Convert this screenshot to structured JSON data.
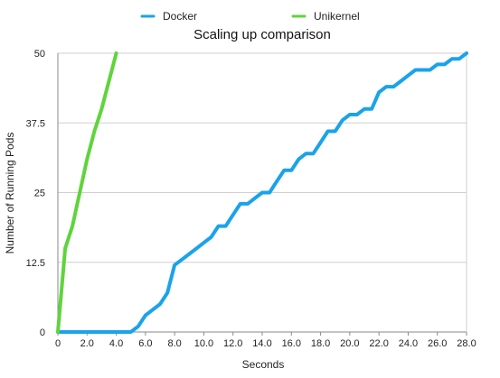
{
  "chart_data": {
    "type": "line",
    "title": "Scaling up comparison",
    "xlabel": "Seconds",
    "ylabel": "Number of Running Pods",
    "xlim": [
      0,
      28
    ],
    "ylim": [
      0,
      50
    ],
    "x_ticks": [
      0,
      2,
      4,
      6,
      8,
      10,
      12,
      14,
      16,
      18,
      20,
      22,
      24,
      26,
      28
    ],
    "x_tick_labels": [
      "0",
      "2.0",
      "4.0",
      "6.0",
      "8.0",
      "10.0",
      "12.0",
      "14.0",
      "16.0",
      "18.0",
      "20.0",
      "22.0",
      "24.0",
      "26.0",
      "28.0"
    ],
    "y_ticks": [
      0,
      12.5,
      25,
      37.5,
      50
    ],
    "y_tick_labels": [
      "0",
      "12.5",
      "25",
      "37.5",
      "50"
    ],
    "grid": true,
    "legend_position": "top-center",
    "series": [
      {
        "name": "Docker",
        "color": "#1aa3ea",
        "points": [
          [
            0,
            0
          ],
          [
            5.0,
            0
          ],
          [
            5.5,
            1
          ],
          [
            6.0,
            3
          ],
          [
            6.5,
            4
          ],
          [
            7.0,
            5
          ],
          [
            7.5,
            7
          ],
          [
            8.0,
            12
          ],
          [
            8.5,
            13
          ],
          [
            9.0,
            14
          ],
          [
            9.5,
            15
          ],
          [
            10.0,
            16
          ],
          [
            10.5,
            17
          ],
          [
            11.0,
            19
          ],
          [
            11.5,
            19
          ],
          [
            12.0,
            21
          ],
          [
            12.5,
            23
          ],
          [
            13.0,
            23
          ],
          [
            13.5,
            24
          ],
          [
            14.0,
            25
          ],
          [
            14.5,
            25
          ],
          [
            15.0,
            27
          ],
          [
            15.5,
            29
          ],
          [
            16.0,
            29
          ],
          [
            16.5,
            31
          ],
          [
            17.0,
            32
          ],
          [
            17.5,
            32
          ],
          [
            18.0,
            34
          ],
          [
            18.5,
            36
          ],
          [
            19.0,
            36
          ],
          [
            19.5,
            38
          ],
          [
            20.0,
            39
          ],
          [
            20.5,
            39
          ],
          [
            21.0,
            40
          ],
          [
            21.5,
            40
          ],
          [
            22.0,
            43
          ],
          [
            22.5,
            44
          ],
          [
            23.0,
            44
          ],
          [
            23.5,
            45
          ],
          [
            24.0,
            46
          ],
          [
            24.5,
            47
          ],
          [
            25.0,
            47
          ],
          [
            25.5,
            47
          ],
          [
            26.0,
            48
          ],
          [
            26.5,
            48
          ],
          [
            27.0,
            49
          ],
          [
            27.5,
            49
          ],
          [
            28.0,
            50
          ]
        ]
      },
      {
        "name": "Unikernel",
        "color": "#5fd43c",
        "points": [
          [
            0,
            0
          ],
          [
            0.5,
            15
          ],
          [
            1.0,
            19
          ],
          [
            1.5,
            25
          ],
          [
            2.0,
            31
          ],
          [
            2.5,
            36
          ],
          [
            3.0,
            40
          ],
          [
            3.5,
            45
          ],
          [
            4.0,
            50
          ]
        ]
      }
    ]
  }
}
